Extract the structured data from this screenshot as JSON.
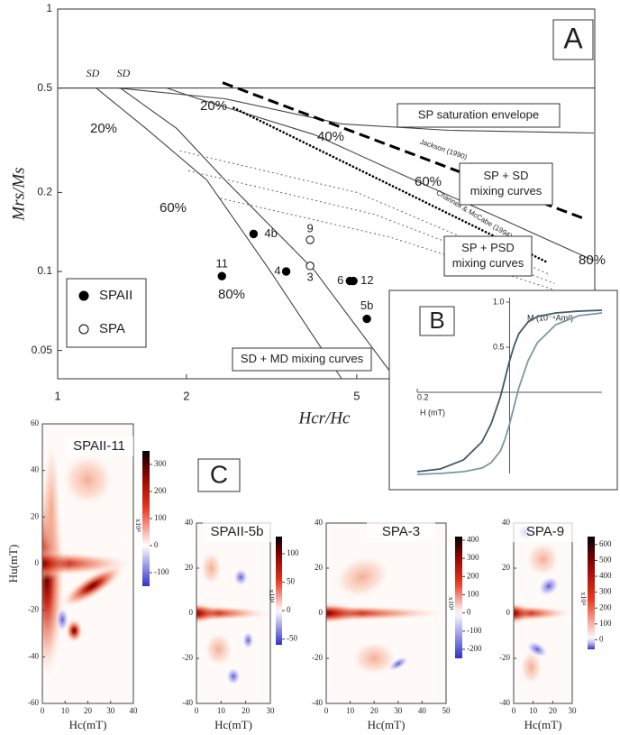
{
  "chart_data": [
    {
      "type": "scatter",
      "panel_label": "A",
      "xlabel": "Hcr/Hc",
      "ylabel": "Mrs/Ms",
      "xscale": "log",
      "yscale": "log",
      "xlim": [
        1,
        18
      ],
      "ylim": [
        0.039,
        1
      ],
      "xticks": [
        1,
        2,
        5
      ],
      "yticks": [
        0.05,
        0.1,
        0.2,
        0.5,
        1
      ],
      "legend": "lower left",
      "series": [
        {
          "name": "SPAII",
          "marker": "filled",
          "color": "#000000",
          "point_labels": [
            "4b",
            "4",
            "11",
            "6",
            "12",
            "5b"
          ],
          "x": [
            2.87,
            3.42,
            2.42,
            4.82,
            4.91,
            5.28
          ],
          "values": [
            0.139,
            0.1,
            0.096,
            0.092,
            0.092,
            0.066
          ]
        },
        {
          "name": "SPA",
          "marker": "open",
          "color": "#000000",
          "point_labels": [
            "9",
            "3"
          ],
          "x": [
            3.89,
            3.89
          ],
          "values": [
            0.132,
            0.105
          ]
        }
      ],
      "curves": [
        {
          "style": "solid",
          "x": [
            1,
            18
          ],
          "y": [
            0.5,
            0.5
          ]
        },
        {
          "style": "solid",
          "x": [
            1.23,
            1.6,
            2.23,
            3.13,
            4.61
          ],
          "y": [
            0.5,
            0.353,
            0.223,
            0.101,
            0.039
          ]
        },
        {
          "style": "solid",
          "x": [
            1.4,
            1.9,
            2.46,
            3.98,
            6.16
          ],
          "y": [
            0.5,
            0.35,
            0.223,
            0.101,
            0.039
          ]
        },
        {
          "style": "solid",
          "x": [
            1,
            1.38,
            2.46,
            4.61,
            8.23,
            17.9
          ],
          "y": [
            0.5,
            0.5,
            0.455,
            0.365,
            0.345,
            0.337
          ]
        },
        {
          "style": "solid",
          "x": [
            1.8,
            2.13,
            3.98,
            6.45,
            10.5,
            17.9
          ],
          "y": [
            0.5,
            0.455,
            0.332,
            0.232,
            0.163,
            0.11
          ]
        },
        {
          "style": "dashed",
          "label": "Jackson (1990)",
          "x": [
            2.43,
            17.0
          ],
          "y": [
            0.524,
            0.159
          ]
        },
        {
          "style": "dotted",
          "label": "Channell & McCabe (1994)",
          "x": [
            2.58,
            14.0
          ],
          "y": [
            0.42,
            0.108
          ]
        },
        {
          "style": "thin-dotted",
          "x": [
            1.93,
            5,
            14
          ],
          "y": [
            0.288,
            0.2,
            0.098
          ]
        },
        {
          "style": "thin-dotted",
          "x": [
            2.02,
            5.5,
            14.5
          ],
          "y": [
            0.242,
            0.165,
            0.09
          ]
        },
        {
          "style": "thin-dotted",
          "x": [
            2.4,
            6,
            14.5
          ],
          "y": [
            0.19,
            0.135,
            0.085
          ]
        }
      ],
      "annotations": [
        "SD",
        "SD",
        "20%",
        "20%",
        "60%",
        "40%",
        "60%",
        "80%",
        "80%"
      ],
      "boxes": [
        [
          "SP saturation envelope"
        ],
        [
          "SP + SD",
          "mixing curves"
        ],
        [
          "SP + PSD",
          "mixing curves"
        ],
        [
          "SD + MD mixing curves"
        ]
      ]
    },
    {
      "type": "line",
      "panel_label": "B",
      "xlabel": "H (mT)",
      "ylabel": "M (10⁻⁴Am²)",
      "xlim": [
        -0.2,
        0.2
      ],
      "ylim": [
        -1,
        1
      ],
      "xticks": [
        {
          "value": -0.2,
          "label": "0.2"
        }
      ],
      "yticks": [
        0.5,
        {
          "value": 1,
          "label": "1.0"
        }
      ],
      "x": [
        -0.2,
        -0.15,
        -0.1,
        -0.06,
        -0.04,
        -0.02,
        -0.01,
        0,
        0.01,
        0.02,
        0.04,
        0.06,
        0.1,
        0.15,
        0.2
      ],
      "series": [
        {
          "color": "#3d5a6c",
          "values": [
            -0.88,
            -0.85,
            -0.75,
            -0.55,
            -0.35,
            -0.05,
            0.15,
            0.35,
            0.52,
            0.65,
            0.78,
            0.84,
            0.88,
            0.9,
            0.91
          ]
        },
        {
          "color": "#7a98a4",
          "values": [
            -0.91,
            -0.9,
            -0.88,
            -0.84,
            -0.78,
            -0.65,
            -0.52,
            -0.35,
            -0.15,
            0.05,
            0.35,
            0.55,
            0.75,
            0.85,
            0.88
          ]
        }
      ]
    },
    {
      "type": "heatmap",
      "panel_label": "C",
      "title": "SPAII-11",
      "xlabel": "Hc(mT)",
      "ylabel": "Hu(mT)",
      "cbar_label": "x10⁴",
      "xlim": [
        0,
        40
      ],
      "ylim": [
        -60,
        60
      ],
      "xticks": [
        0,
        10,
        20,
        30,
        40
      ],
      "yticks": [
        -60,
        -40,
        -20,
        0,
        20,
        40,
        60
      ],
      "clim": [
        -150,
        350
      ],
      "cticks": [
        -100,
        0,
        100,
        200,
        300
      ]
    },
    {
      "type": "heatmap",
      "title": "SPAII-5b",
      "xlabel": "Hc(mT)",
      "cbar_label": "x10⁴",
      "xlim": [
        0,
        30
      ],
      "ylim": [
        -40,
        40
      ],
      "xticks": [
        0,
        10,
        20,
        30
      ],
      "yticks": [
        -40,
        -20,
        0,
        20,
        40
      ],
      "clim": [
        -60,
        130
      ],
      "cticks": [
        -50,
        0,
        50,
        100
      ]
    },
    {
      "type": "heatmap",
      "title": "SPA-3",
      "xlabel": "Hc(mT)",
      "cbar_label": "x10⁴",
      "xlim": [
        0,
        50
      ],
      "ylim": [
        -40,
        40
      ],
      "xticks": [
        0,
        10,
        20,
        30,
        40,
        50
      ],
      "yticks": [
        -40,
        -20,
        0,
        20,
        40
      ],
      "clim": [
        -250,
        420
      ],
      "cticks": [
        -200,
        -100,
        0,
        100,
        200,
        300,
        400
      ]
    },
    {
      "type": "heatmap",
      "title": "SPA-9",
      "xlabel": "Hc(mT)",
      "cbar_label": "x10⁴",
      "xlim": [
        0,
        30
      ],
      "ylim": [
        -40,
        40
      ],
      "xticks": [
        0,
        10,
        20,
        30
      ],
      "yticks": [
        -40,
        -20,
        0,
        20,
        40
      ],
      "clim": [
        -60,
        650
      ],
      "cticks": [
        0,
        100,
        200,
        300,
        400,
        500,
        600
      ]
    }
  ]
}
